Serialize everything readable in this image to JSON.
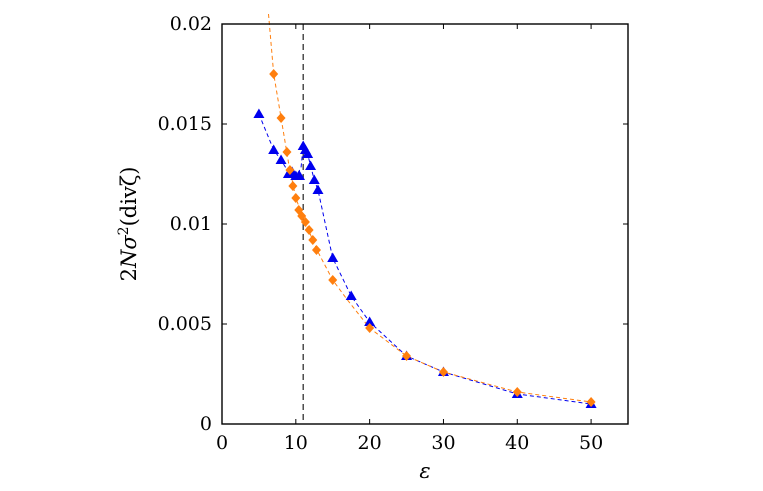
{
  "chart_data": {
    "type": "scatter",
    "xlabel": "ε",
    "ylabel_parts": {
      "pre": "2",
      "N": "N",
      "sigma": "σ",
      "sup": "2",
      "post": "(divζ)"
    },
    "xlim": [
      0,
      55
    ],
    "ylim": [
      0,
      0.02
    ],
    "x_ticks": [
      0,
      10,
      20,
      30,
      40,
      50
    ],
    "y_ticks": [
      0,
      0.005,
      0.01,
      0.015,
      0.02
    ],
    "y_tick_labels": [
      "0",
      "0.005",
      "0.01",
      "0.015",
      "0.02"
    ],
    "grid": false,
    "legend": "none",
    "vertical_reference_x": 11,
    "series": [
      {
        "marker": "triangle",
        "color": "#0000ee",
        "x": [
          5,
          7,
          8,
          9,
          9.5,
          10,
          10.5,
          11,
          11.3,
          11.6,
          12,
          12.5,
          13,
          15,
          17.5,
          20,
          25,
          30,
          40,
          50
        ],
        "y": [
          0.0155,
          0.0137,
          0.0132,
          0.0125,
          0.0126,
          0.0124,
          0.0124,
          0.0139,
          0.0137,
          0.0135,
          0.0129,
          0.0122,
          0.0117,
          0.0083,
          0.0064,
          0.0051,
          0.0034,
          0.0026,
          0.0015,
          0.001
        ],
        "fit": [
          [
            5,
            0.0155
          ],
          [
            7,
            0.0137
          ],
          [
            8,
            0.0132
          ],
          [
            9,
            0.0126
          ],
          [
            10,
            0.0124
          ],
          [
            10.7,
            0.0128
          ],
          [
            11,
            0.0139
          ],
          [
            11.6,
            0.0135
          ],
          [
            12.5,
            0.0122
          ],
          [
            13,
            0.0117
          ],
          [
            15,
            0.0083
          ],
          [
            17.5,
            0.0064
          ],
          [
            20,
            0.0051
          ],
          [
            25,
            0.0034
          ],
          [
            30,
            0.0026
          ],
          [
            40,
            0.0015
          ],
          [
            50,
            0.001
          ]
        ]
      },
      {
        "marker": "diamond",
        "color": "#ff7f0e",
        "x": [
          7,
          8,
          8.8,
          9.2,
          9.6,
          10,
          10.4,
          10.8,
          11.3,
          11.8,
          12.3,
          12.8,
          15,
          20,
          25,
          30,
          40,
          50
        ],
        "y": [
          0.0175,
          0.0153,
          0.0136,
          0.0127,
          0.0119,
          0.0113,
          0.0107,
          0.0104,
          0.0101,
          0.0097,
          0.0092,
          0.0087,
          0.0072,
          0.0048,
          0.0034,
          0.0026,
          0.0016,
          0.0011
        ],
        "fit": [
          [
            6.3,
            0.0205
          ],
          [
            7,
            0.0175
          ],
          [
            8,
            0.0153
          ],
          [
            9,
            0.0131
          ],
          [
            10,
            0.0113
          ],
          [
            11,
            0.0103
          ],
          [
            12.3,
            0.0092
          ],
          [
            13,
            0.0086
          ],
          [
            15,
            0.0072
          ],
          [
            17,
            0.0062
          ],
          [
            20,
            0.0048
          ],
          [
            25,
            0.0034
          ],
          [
            30,
            0.0026
          ],
          [
            40,
            0.0016
          ],
          [
            50,
            0.0011
          ]
        ]
      }
    ]
  }
}
